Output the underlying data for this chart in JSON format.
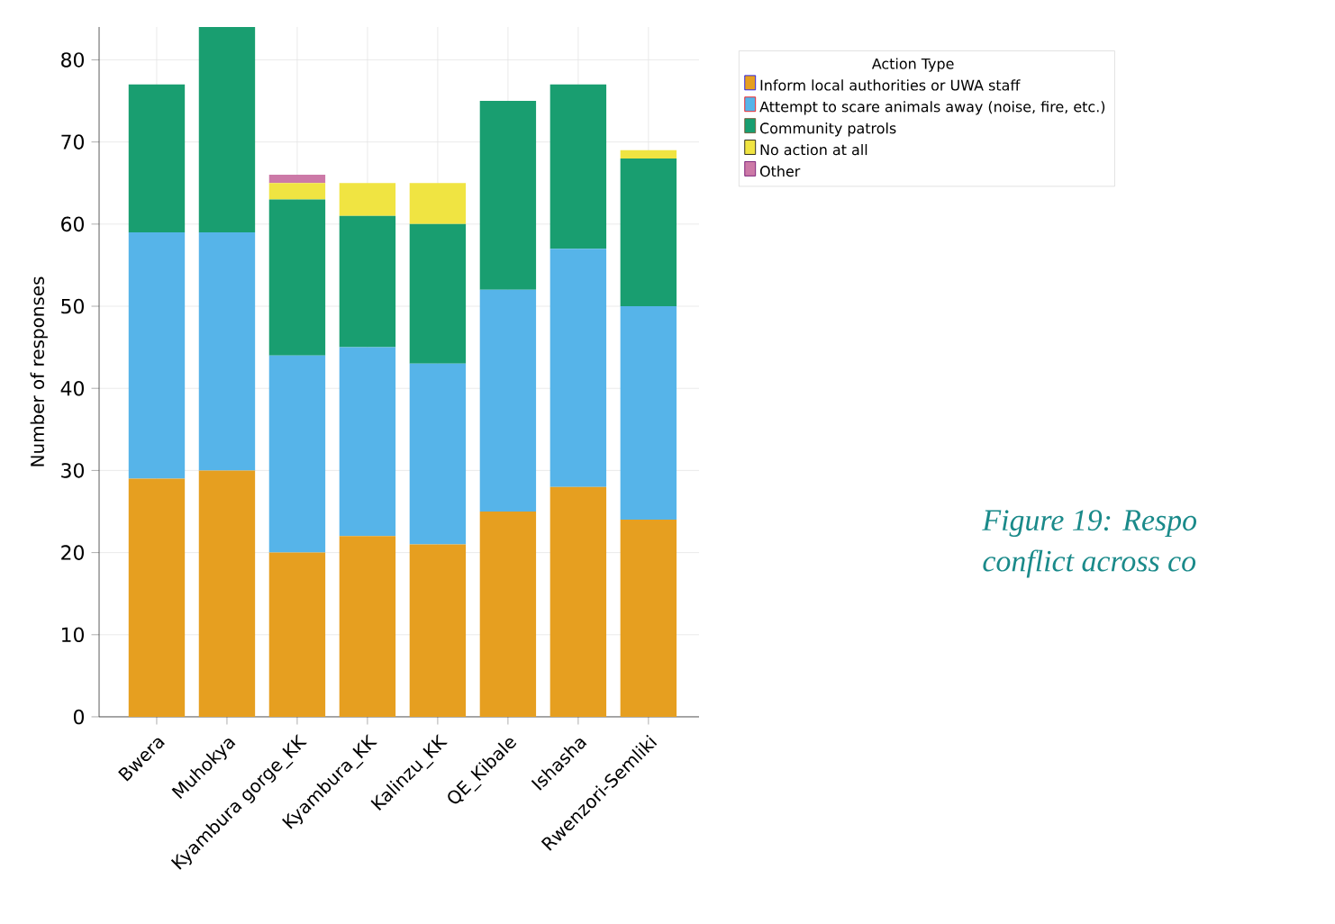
{
  "chart_data": {
    "type": "bar",
    "stacked": true,
    "ylabel": "Number of responses",
    "legend_title": "Action Type",
    "categories": [
      "Bwera",
      "Muhokya",
      "Kyambura gorge_KK",
      "Kyambura_KK",
      "Kalinzu_KK",
      "QE_Kibale",
      "Ishasha",
      "Rwenzori-Semliki"
    ],
    "series": [
      {
        "name": "Inform local authorities or UWA staff",
        "color": "#e69f20",
        "values": [
          29,
          30,
          20,
          22,
          21,
          25,
          28,
          24
        ]
      },
      {
        "name": "Attempt to scare animals away (noise, fire, etc.)",
        "color": "#56b4e9",
        "values": [
          30,
          29,
          24,
          23,
          22,
          27,
          29,
          26
        ]
      },
      {
        "name": "Community patrols",
        "color": "#199e70",
        "values": [
          18,
          25,
          19,
          16,
          17,
          23,
          20,
          18
        ]
      },
      {
        "name": "No action at all",
        "color": "#f0e442",
        "values": [
          0,
          0,
          2,
          4,
          5,
          0,
          0,
          1
        ]
      },
      {
        "name": "Other",
        "color": "#cc79a7",
        "values": [
          0,
          0,
          1,
          0,
          0,
          0,
          0,
          0
        ]
      }
    ],
    "ylim": [
      0,
      84
    ],
    "yticks": [
      0,
      10,
      20,
      30,
      40,
      50,
      60,
      70,
      80
    ],
    "grid": true,
    "legend": "right",
    "annotations": [
      "Figure 19: Respo",
      "conflict across co"
    ]
  }
}
